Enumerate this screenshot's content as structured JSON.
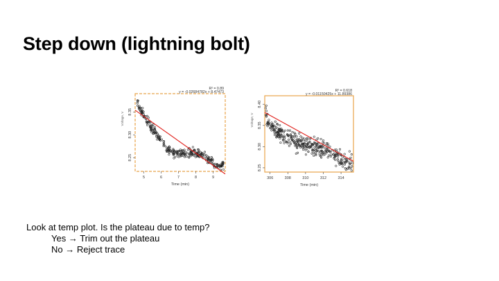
{
  "slide": {
    "title": "Step down (lightning bolt)",
    "lines": [
      "Look at temp plot. Is the plateau due to temp?",
      "Yes → Trim out the plateau",
      "No → Reject trace"
    ]
  },
  "colors": {
    "frame": "#e8a44a",
    "fit_line": "#e0201b",
    "points": "#222222"
  },
  "chart_data": [
    {
      "type": "scatter",
      "x_ticks": [
        "5",
        "6",
        "7",
        "8",
        "9"
      ],
      "y_ticks": [
        "8.25",
        "8.30",
        "8.35"
      ],
      "xlabel": "Time (min)",
      "ylabel": "Voltage, V",
      "xlim": [
        4.5,
        9.7
      ],
      "ylim": [
        8.22,
        8.39
      ],
      "fit": {
        "slope": -0.02684782,
        "intercept": 8.47473
      },
      "equation": "y = -0.02684782x + 8.47473",
      "r2_label": "R² = 0.89",
      "trend": [
        [
          4.6,
          8.375
        ],
        [
          4.75,
          8.362
        ],
        [
          4.9,
          8.35
        ],
        [
          5.1,
          8.336
        ],
        [
          5.3,
          8.325
        ],
        [
          5.5,
          8.313
        ],
        [
          5.7,
          8.303
        ],
        [
          5.9,
          8.292
        ],
        [
          6.1,
          8.282
        ],
        [
          6.3,
          8.272
        ],
        [
          6.5,
          8.264
        ],
        [
          6.7,
          8.26
        ],
        [
          6.9,
          8.258
        ],
        [
          7.1,
          8.258
        ],
        [
          7.3,
          8.26
        ],
        [
          7.5,
          8.259
        ],
        [
          7.7,
          8.26
        ],
        [
          7.9,
          8.261
        ],
        [
          8.1,
          8.259
        ],
        [
          8.3,
          8.257
        ],
        [
          8.5,
          8.254
        ],
        [
          8.7,
          8.248
        ],
        [
          8.9,
          8.241
        ],
        [
          9.1,
          8.234
        ],
        [
          9.3,
          8.231
        ],
        [
          9.5,
          8.233
        ]
      ],
      "n_points": 320,
      "noise": 0.006,
      "seed": 17
    },
    {
      "type": "scatter",
      "x_ticks": [
        "306",
        "308",
        "310",
        "312",
        "314"
      ],
      "y_ticks": [
        "8.25",
        "8.30",
        "8.35",
        "8.40"
      ],
      "xlabel": "Time (min)",
      "ylabel": "Voltage, V",
      "xlim": [
        305.4,
        315.4
      ],
      "ylim": [
        8.24,
        8.42
      ],
      "fit": {
        "slope": -0.01150425,
        "intercept": 11.89386
      },
      "equation": "y = -0.01150425x + 11.89386",
      "r2_label": "R² = 0.618",
      "trend": [
        [
          305.5,
          8.385
        ],
        [
          305.8,
          8.36
        ],
        [
          306.2,
          8.345
        ],
        [
          306.8,
          8.335
        ],
        [
          307.5,
          8.325
        ],
        [
          308.2,
          8.318
        ],
        [
          309.0,
          8.31
        ],
        [
          309.8,
          8.305
        ],
        [
          310.6,
          8.302
        ],
        [
          311.4,
          8.298
        ],
        [
          312.2,
          8.292
        ],
        [
          313.0,
          8.284
        ],
        [
          313.8,
          8.275
        ],
        [
          314.3,
          8.266
        ],
        [
          314.8,
          8.262
        ],
        [
          315.1,
          8.264
        ]
      ],
      "n_points": 360,
      "noise": 0.013,
      "seed": 91
    }
  ]
}
